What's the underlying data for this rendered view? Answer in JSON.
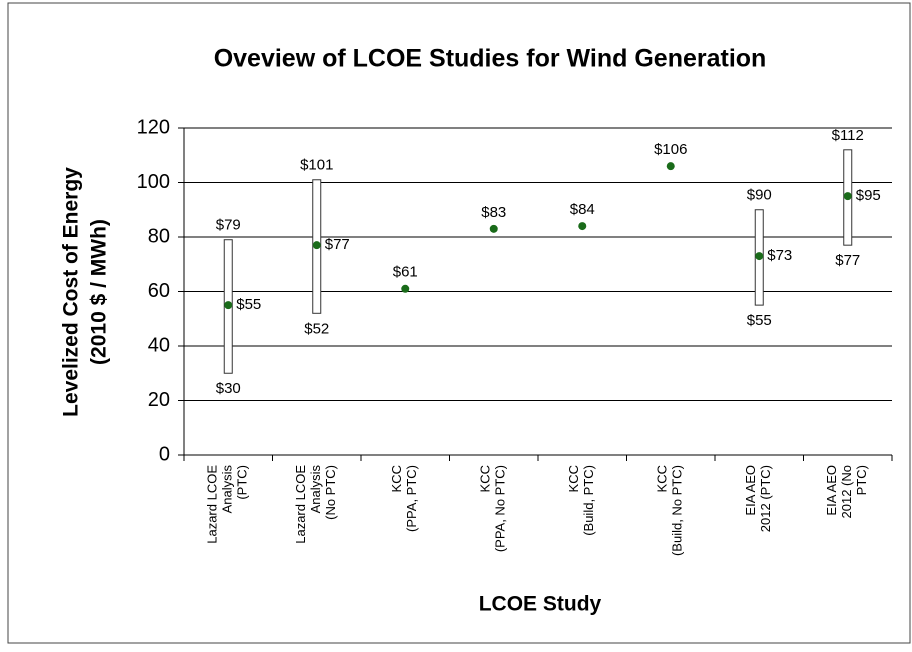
{
  "chart_data": {
    "type": "range",
    "title": "Oveview of LCOE Studies for Wind Generation",
    "y_label": [
      "Levelized Cost of Energy",
      "(2010 $ / MWh)"
    ],
    "x_label": "LCOE Study",
    "categories": [
      [
        "Lazard LCOE",
        "Analysis",
        "(PTC)"
      ],
      [
        "Lazard LCOE",
        "Analysis",
        "(No PTC)"
      ],
      [
        "KCC",
        "(PPA, PTC)"
      ],
      [
        "KCC",
        "(PPA, No PTC)"
      ],
      [
        "KCC",
        "(Build, PTC)"
      ],
      [
        "KCC",
        "(Build, No PTC)"
      ],
      [
        "EIA AEO",
        "2012 (PTC)"
      ],
      [
        "EIA AEO",
        "2012 (No",
        "PTC)"
      ]
    ],
    "values": [
      55,
      77,
      61,
      83,
      84,
      106,
      73,
      95
    ],
    "value_labels": [
      "$55",
      "$77",
      "$61",
      "$83",
      "$84",
      "$106",
      "$73",
      "$95"
    ],
    "low": [
      30,
      52,
      null,
      null,
      null,
      null,
      55,
      77
    ],
    "low_labels": [
      "$30",
      "$52",
      null,
      null,
      null,
      null,
      "$55",
      "$77"
    ],
    "high": [
      79,
      101,
      null,
      null,
      null,
      null,
      90,
      112
    ],
    "high_labels": [
      "$79",
      "$101",
      null,
      null,
      null,
      null,
      "$90",
      "$112"
    ],
    "color": "#1a6b1a",
    "bar_color": "#ffffff",
    "ylim": [
      0,
      120
    ],
    "yticks": [
      0,
      20,
      40,
      60,
      80,
      100,
      120
    ],
    "grid": true
  }
}
